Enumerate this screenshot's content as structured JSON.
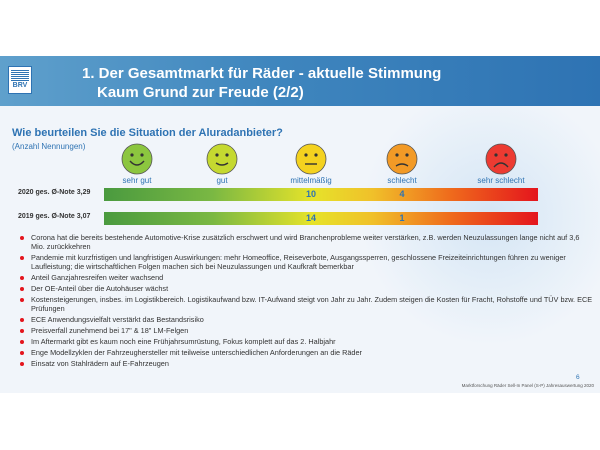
{
  "header": {
    "logo_text": "BRV",
    "title_line1": "1. Der Gesamtmarkt für Räder - aktuelle Stimmung",
    "title_line2": "Kaum Grund zur Freude (2/2)"
  },
  "question": {
    "text": "Wie beurteilen Sie die Situation der Aluradanbieter?",
    "subtext": "(Anzahl Nennungen)"
  },
  "scale": [
    {
      "label": "sehr gut",
      "color": "#8cc63f",
      "mood": "very-happy"
    },
    {
      "label": "gut",
      "color": "#c5d930",
      "mood": "happy"
    },
    {
      "label": "mittelmäßig",
      "color": "#f4d21f",
      "mood": "neutral"
    },
    {
      "label": "schlecht",
      "color": "#f29a26",
      "mood": "sad"
    },
    {
      "label": "sehr schlecht",
      "color": "#ec3b32",
      "mood": "very-sad"
    }
  ],
  "rows": [
    {
      "label": "2020 ges. Ø-Note 3,29",
      "counts": [
        "",
        "",
        "10",
        "4",
        ""
      ]
    },
    {
      "label": "2019 ges. Ø-Note 3,07",
      "counts": [
        "",
        "",
        "14",
        "1",
        ""
      ]
    }
  ],
  "bullets": [
    "Corona hat die bereits bestehende Automotive-Krise zusätzlich erschwert und wird Branchenprobleme weiter verstärken, z.B. werden Neuzulassungen lange nicht auf 3,6 Mio. zurückkehren",
    "Pandemie mit kurzfristigen und langfristigen Auswirkungen: mehr Homeoffice, Reiseverbote, Ausgangssperren, geschlossene Freizeiteinrichtungen führen zu weniger Laufleistung; die wirtschaftlichen Folgen machen sich bei Neuzulassungen und Kaufkraft bemerkbar",
    "Anteil Ganzjahresreifen weiter wachsend",
    "Der OE-Anteil über die Autohäuser wächst",
    "Kostensteigerungen, insbes. im Logistikbereich. Logistikaufwand bzw. IT-Aufwand steigt von Jahr zu Jahr. Zudem steigen die Kosten für Fracht, Rohstoffe und TÜV bzw. ECE Prüfungen",
    "ECE Anwendungsvielfalt verstärkt das Bestandsrisiko",
    "Preisverfall zunehmend bei 17\" & 18\" LM-Felgen",
    "Im Aftermarkt gibt es kaum noch eine Frühjahrsumrüstung, Fokus komplett auf das 2. Halbjahr",
    "Enge Modellzyklen der Fahrzeughersteller mit teilweise unterschiedlichen Anforderungen an die Räder",
    "Einsatz von Stahlrädern auf E-Fahrzeugen"
  ],
  "footer": {
    "page_number": "6",
    "source": "Marktforschung Räder Sell-In Panel (S-P) Jahresauswertung 2020"
  }
}
